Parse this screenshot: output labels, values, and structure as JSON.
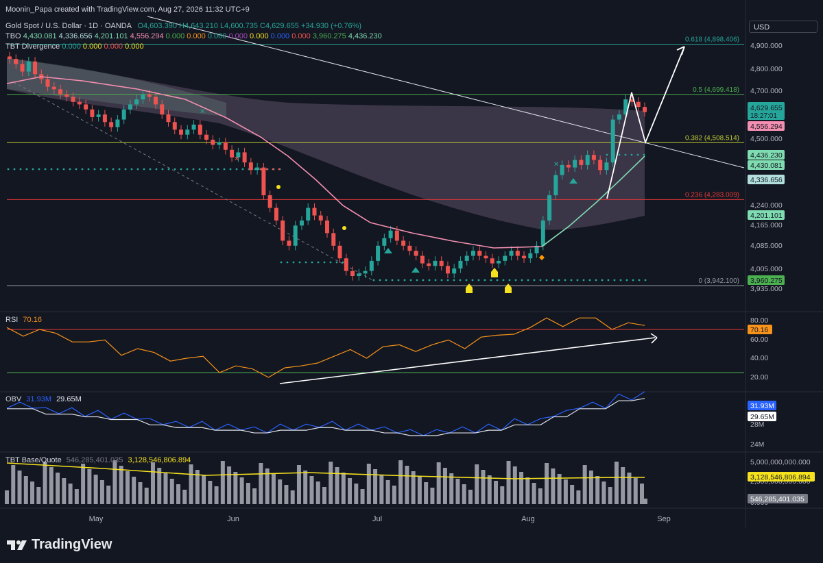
{
  "header": {
    "attribution": "Moonin_Papa created with TradingView.com, Aug 27, 2026 11:32 UTC+9",
    "symbol": "Gold Spot / U.S. Dollar · 1D · OANDA",
    "ohlc": "O4,603.390 H4,643.210 L4,600.735 C4,629.655 +34.930 (+0.76%)",
    "tbo_label": "TBO",
    "tbo_values": [
      "4,430.081",
      "4,336.656",
      "4,201.101",
      "4,556.294",
      "0.000",
      "0.000",
      "0.000",
      "0.000",
      "0.000",
      "0.000",
      "0.000",
      "3,960.275",
      "4,436.230"
    ],
    "tbt_div_label": "TBT Divergence",
    "tbt_div_values": [
      "0.000",
      "0.000",
      "0.000",
      "0.000"
    ]
  },
  "currency": "USD",
  "colors": {
    "bg": "#131722",
    "up": "#26a69a",
    "down": "#ef5350",
    "rsi": "#f7931a",
    "obv": "#2962ff",
    "pink": "#f48fb1",
    "teal": "#7fdbb0",
    "cloud": "#6b5a70",
    "yellow": "#f5e11d",
    "fibGreen": "#4caf50",
    "fibRed": "#e53935"
  },
  "price_axis": {
    "ticks": [
      "4,900.000",
      "4,800.000",
      "4,700.000",
      "4,500.000",
      "4,240.000",
      "4,165.000",
      "4,085.000",
      "4,005.000",
      "3,935.000"
    ]
  },
  "price_badges": [
    {
      "text": "4,629.655",
      "sub": "18:27:01",
      "color": "#26a69a"
    },
    {
      "text": "4,556.294",
      "color": "#f48fb1"
    },
    {
      "text": "4,436.230",
      "color": "#7fdbb0"
    },
    {
      "text": "4,430.081",
      "color": "#7fdbb0"
    },
    {
      "text": "4,336.656",
      "color": "#b2dfdb"
    },
    {
      "text": "4,201.101",
      "color": "#7fdbb0"
    },
    {
      "text": "3,960.275",
      "color": "#4caf50"
    }
  ],
  "fib_labels": [
    "0.618 (4,898.406)",
    "0.5 (4,699.418)",
    "0.382 (4,508.514)",
    "0.236 (4,283.009)",
    "0 (3,942.100)"
  ],
  "rsi": {
    "label": "RSI",
    "value": "70.16",
    "ticks": [
      "80.00",
      "60.00",
      "40.00",
      "20.00"
    ]
  },
  "obv": {
    "label": "OBV",
    "v1": "31.93M",
    "v2": "29.65M",
    "ticks": [
      "28M",
      "24M"
    ]
  },
  "tbt_bq": {
    "label": "TBT Base/Quote",
    "v1": "546,285,401.035",
    "v2": "3,128,546,806.894",
    "ticks": [
      "5,000,000,000.000",
      "2,500,000,000.000",
      "0.000"
    ]
  },
  "x_axis": {
    "ticks": [
      "May",
      "Jun",
      "Jul",
      "Aug",
      "Sep"
    ]
  },
  "brand": "TradingView",
  "chart_data": {
    "type": "candlestick",
    "title": "Gold Spot / U.S. Dollar · 1D · OANDA",
    "x_range": [
      "Apr",
      "Sep"
    ],
    "y_range": [
      3900,
      4950
    ],
    "last": {
      "open": 4603.39,
      "high": 4643.21,
      "low": 4600.735,
      "close": 4629.655
    },
    "fib_levels": [
      {
        "ratio": 0,
        "price": 3942.1
      },
      {
        "ratio": 0.236,
        "price": 4283.009
      },
      {
        "ratio": 0.382,
        "price": 4508.514
      },
      {
        "ratio": 0.5,
        "price": 4699.418
      },
      {
        "ratio": 0.618,
        "price": 4898.406
      }
    ],
    "series": [
      {
        "name": "RSI",
        "values": [
          68,
          62,
          55,
          48,
          42,
          38,
          30,
          25,
          28,
          40,
          45,
          50,
          52,
          55,
          60,
          70,
          78,
          80,
          75,
          70.16
        ]
      },
      {
        "name": "OBV",
        "values": [
          30,
          29,
          28.5,
          28,
          27,
          26.5,
          26,
          25.5,
          26,
          26.5,
          26,
          25.5,
          25,
          25.5,
          26,
          27,
          28.5,
          30,
          31.5,
          31.93
        ]
      }
    ]
  }
}
